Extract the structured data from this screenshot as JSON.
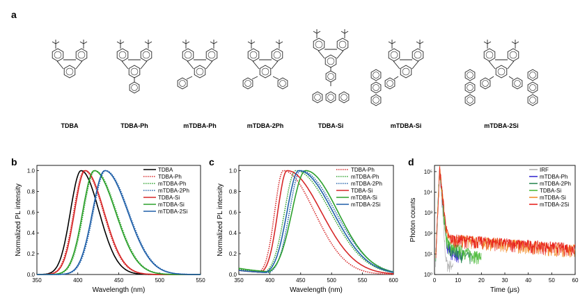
{
  "figure": {
    "panel_labels": [
      "a",
      "b",
      "c",
      "d"
    ]
  },
  "molecules": [
    "TDBA",
    "TDBA-Ph",
    "mTDBA-Ph",
    "mTDBA-2Ph",
    "TDBA-Si",
    "mTDBA-Si",
    "mTDBA-2Si"
  ],
  "chart_data": [
    {
      "panel": "b",
      "type": "line",
      "xlabel": "Wavelength (nm)",
      "ylabel": "Normalized PL intensity",
      "xlim": [
        350,
        550
      ],
      "ylim": [
        0,
        1.05
      ],
      "xticks": [
        "350",
        "400",
        "450",
        "500",
        "550"
      ],
      "yticks": [
        "0.0",
        "0.2",
        "0.4",
        "0.6",
        "0.8",
        "1.0"
      ],
      "legend_position": "top-right",
      "series": [
        {
          "name": "TDBA",
          "color": "#000000",
          "style": "solid",
          "peak": 404,
          "sigL": 13,
          "sigR": 22
        },
        {
          "name": "TDBA-Ph",
          "color": "#d62728",
          "style": "dotted",
          "peak": 408,
          "sigL": 13,
          "sigR": 23
        },
        {
          "name": "mTDBA-Ph",
          "color": "#2ca02c",
          "style": "dotted",
          "peak": 421,
          "sigL": 14,
          "sigR": 26
        },
        {
          "name": "mTDBA-2Ph",
          "color": "#1f5fa8",
          "style": "dotted",
          "peak": 434,
          "sigL": 15,
          "sigR": 28
        },
        {
          "name": "TDBA-Si",
          "color": "#d62728",
          "style": "solid",
          "peak": 409,
          "sigL": 13,
          "sigR": 23
        },
        {
          "name": "mTDBA-Si",
          "color": "#2ca02c",
          "style": "solid",
          "peak": 420,
          "sigL": 14,
          "sigR": 26
        },
        {
          "name": "mTDBA-2Si",
          "color": "#1f5fa8",
          "style": "solid",
          "peak": 433,
          "sigL": 15,
          "sigR": 28
        }
      ]
    },
    {
      "panel": "c",
      "type": "line",
      "xlabel": "Wavelength (nm)",
      "ylabel": "Normalized PL intensity",
      "xlim": [
        350,
        600
      ],
      "ylim": [
        0,
        1.05
      ],
      "xticks": [
        "350",
        "400",
        "450",
        "500",
        "550",
        "600"
      ],
      "yticks": [
        "0.0",
        "0.2",
        "0.4",
        "0.6",
        "0.8",
        "1.0"
      ],
      "legend_position": "top-right",
      "series": [
        {
          "name": "TDBA-Ph",
          "color": "#d62728",
          "style": "dotted",
          "peak": 422,
          "sigL": 14,
          "sigR": 50,
          "base": 0.04
        },
        {
          "name": "mTDBA-Ph",
          "color": "#2ca02c",
          "style": "dotted",
          "peak": 442,
          "sigL": 18,
          "sigR": 56,
          "base": 0.05
        },
        {
          "name": "mTDBA-2Ph",
          "color": "#1f5fa8",
          "style": "dotted",
          "peak": 450,
          "sigL": 18,
          "sigR": 56,
          "base": 0.04
        },
        {
          "name": "TDBA-Si",
          "color": "#d62728",
          "style": "solid",
          "peak": 428,
          "sigL": 15,
          "sigR": 55,
          "base": 0.04
        },
        {
          "name": "mTDBA-Si",
          "color": "#2ca02c",
          "style": "solid",
          "peak": 458,
          "sigL": 22,
          "sigR": 52,
          "base": 0.06
        },
        {
          "name": "mTDBA-2Si",
          "color": "#1f5fa8",
          "style": "solid",
          "peak": 447,
          "sigL": 19,
          "sigR": 55,
          "base": 0.04
        }
      ]
    },
    {
      "panel": "d",
      "type": "line",
      "xlabel": "Time (μs)",
      "ylabel": "Photon counts",
      "xlim": [
        0,
        60
      ],
      "ylim_log": [
        1,
        200000
      ],
      "yscale": "log",
      "xticks": [
        "0",
        "10",
        "20",
        "30",
        "40",
        "50",
        "60"
      ],
      "yticks": [
        "10⁰",
        "10¹",
        "10²",
        "10³",
        "10⁴",
        "10⁵"
      ],
      "legend_position": "top-right",
      "series": [
        {
          "name": "IRF",
          "color": "#b0b0b0",
          "peak": 150000,
          "tau_fast": 0.25,
          "tail": 0.0,
          "noise_end": 8
        },
        {
          "name": "mTDBA-Ph",
          "color": "#3b2fd0",
          "peak": 150000,
          "tau_fast": 0.35,
          "tail": 30,
          "tau_slow": 5,
          "noise_end": 12
        },
        {
          "name": "mTDBA-2Ph",
          "color": "#2e8b57",
          "peak": 150000,
          "tau_fast": 0.35,
          "tail": 35,
          "tau_slow": 6,
          "noise_end": 16
        },
        {
          "name": "TDBA-Si",
          "color": "#4cbb3a",
          "peak": 150000,
          "tau_fast": 0.35,
          "tail": 40,
          "tau_slow": 8,
          "noise_end": 20
        },
        {
          "name": "mTDBA-Si",
          "color": "#f28e2b",
          "peak": 150000,
          "tau_fast": 0.4,
          "tail": 60,
          "tau_slow": 40,
          "noise_end": 60
        },
        {
          "name": "mTDBA-2Si",
          "color": "#e8231f",
          "peak": 150000,
          "tau_fast": 0.4,
          "tail": 60,
          "tau_slow": 45,
          "noise_end": 60
        }
      ]
    }
  ]
}
